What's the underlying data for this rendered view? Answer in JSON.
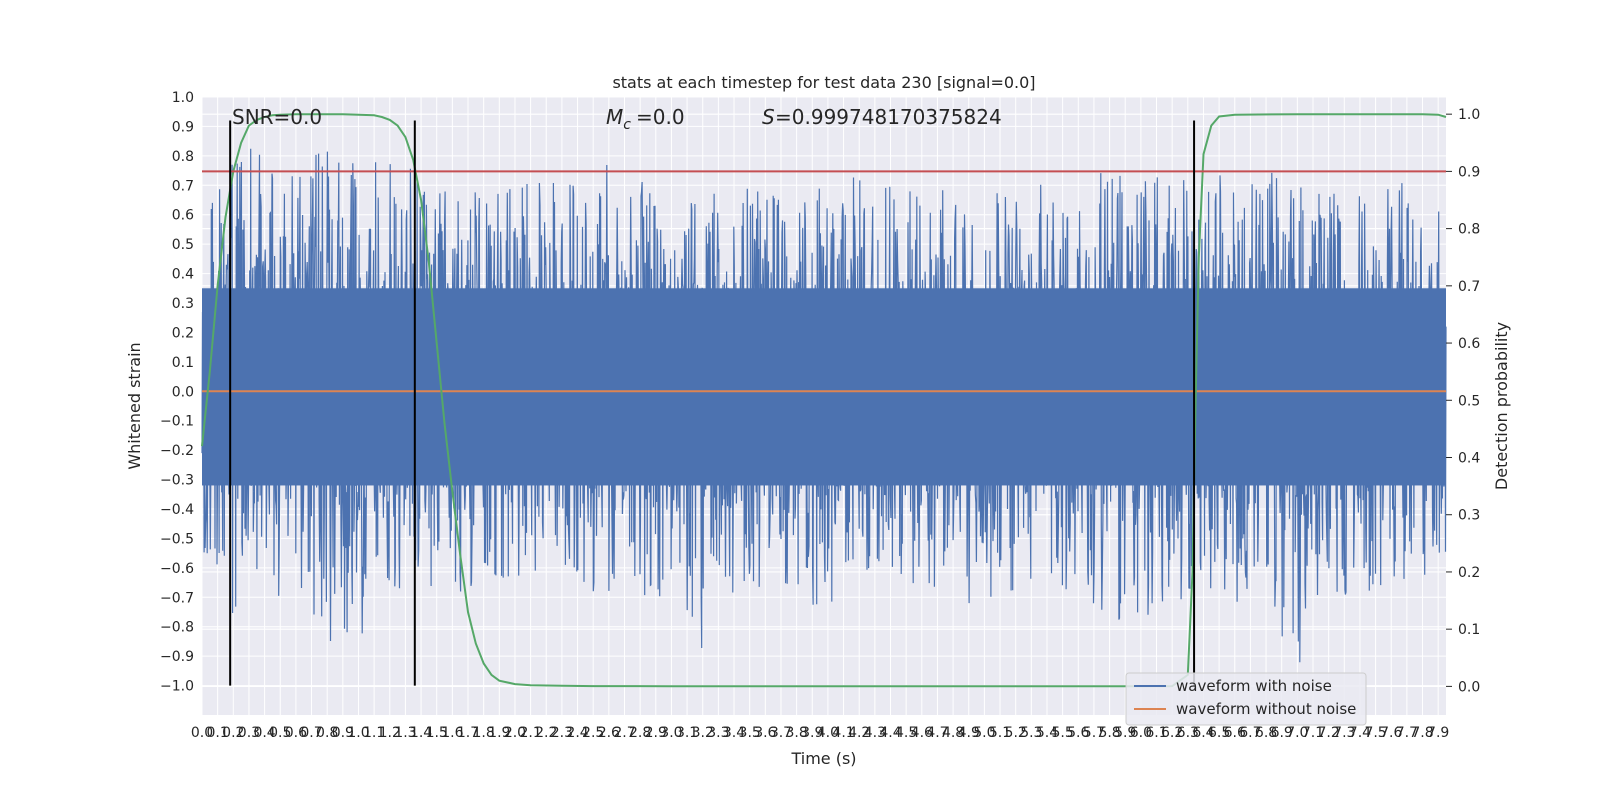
{
  "chart_data": {
    "type": "line",
    "title": "stats at each timestep for test data 230 [signal=0.0]",
    "xlabel": "Time (s)",
    "ylabel": "Whitened strain",
    "y2label": "Detection probability",
    "xlim": [
      0.0,
      7.95
    ],
    "ylim": [
      -1.1,
      1.0
    ],
    "y2lim": [
      -0.05,
      1.03
    ],
    "x_ticks": [
      "0.0",
      "0.1",
      "0.2",
      "0.3",
      "0.4",
      "0.5",
      "0.6",
      "0.7",
      "0.8",
      "0.9",
      "1.0",
      "1.1",
      "1.2",
      "1.3",
      "1.4",
      "1.5",
      "1.6",
      "1.7",
      "1.8",
      "1.9",
      "2.0",
      "2.1",
      "2.2",
      "2.3",
      "2.4",
      "2.5",
      "2.6",
      "2.7",
      "2.8",
      "2.9",
      "3.0",
      "3.1",
      "3.2",
      "3.3",
      "3.4",
      "3.5",
      "3.6",
      "3.7",
      "3.8",
      "3.9",
      "4.0",
      "4.1",
      "4.2",
      "4.3",
      "4.4",
      "4.5",
      "4.6",
      "4.7",
      "4.8",
      "4.9",
      "5.0",
      "5.1",
      "5.2",
      "5.3",
      "5.4",
      "5.5",
      "5.6",
      "5.7",
      "5.8",
      "5.9",
      "6.0",
      "6.1",
      "6.2",
      "6.3",
      "6.4",
      "6.5",
      "6.6",
      "6.7",
      "6.8",
      "6.9",
      "7.0",
      "7.1",
      "7.2",
      "7.3",
      "7.4",
      "7.5",
      "7.6",
      "7.7",
      "7.8",
      "7.9"
    ],
    "y_ticks": [
      "1.0",
      "0.9",
      "0.8",
      "0.7",
      "0.6",
      "0.5",
      "0.4",
      "0.3",
      "0.2",
      "0.1",
      "0.0",
      "−0.1",
      "−0.2",
      "−0.3",
      "−0.4",
      "−0.5",
      "−0.6",
      "−0.7",
      "−0.8",
      "−0.9",
      "−1.0"
    ],
    "y2_ticks": [
      "1.0",
      "0.9",
      "0.8",
      "0.7",
      "0.6",
      "0.5",
      "0.4",
      "0.3",
      "0.2",
      "0.1",
      "0.0"
    ],
    "annotations": {
      "snr": "SNR=0.0",
      "mc": "=0.0",
      "s": "=0.999748170375824"
    },
    "noise_envelope": {
      "x": [
        0.0,
        0.2,
        0.4,
        0.6,
        0.8,
        1.0,
        1.2,
        1.4,
        1.6,
        1.8,
        2.0,
        2.2,
        2.4,
        2.6,
        2.8,
        3.0,
        3.2,
        3.4,
        3.6,
        3.8,
        4.0,
        4.2,
        4.4,
        4.6,
        4.8,
        5.0,
        5.2,
        5.4,
        5.6,
        5.8,
        6.0,
        6.2,
        6.4,
        6.6,
        6.8,
        7.0,
        7.2,
        7.4,
        7.6,
        7.8,
        7.95
      ],
      "max": [
        0.55,
        0.86,
        0.8,
        0.85,
        0.85,
        0.8,
        0.8,
        0.77,
        0.67,
        0.72,
        0.71,
        0.72,
        0.73,
        0.81,
        0.72,
        0.62,
        0.7,
        0.73,
        0.74,
        0.7,
        0.75,
        0.78,
        0.72,
        0.72,
        0.69,
        0.63,
        0.74,
        0.73,
        0.72,
        0.75,
        0.76,
        0.76,
        0.68,
        0.84,
        0.75,
        0.73,
        0.72,
        0.68,
        0.81,
        0.6,
        0.62
      ],
      "min": [
        -0.55,
        -0.76,
        -0.76,
        -0.65,
        -0.87,
        -0.86,
        -0.7,
        -0.7,
        -0.76,
        -0.68,
        -0.63,
        -0.62,
        -0.7,
        -0.68,
        -0.72,
        -0.77,
        -0.94,
        -0.7,
        -0.67,
        -0.73,
        -0.79,
        -0.7,
        -0.68,
        -0.73,
        -0.74,
        -0.72,
        -0.78,
        -0.71,
        -0.7,
        -0.82,
        -0.77,
        -0.77,
        -0.66,
        -0.72,
        -0.69,
        -1.0,
        -0.68,
        -0.72,
        -0.65,
        -0.63,
        -0.6
      ]
    },
    "series": [
      {
        "name": "waveform with noise",
        "color": "#4c72b0"
      },
      {
        "name": "waveform without noise",
        "color": "#dd8452",
        "x": [
          0.0,
          7.95
        ],
        "y": [
          0.0,
          0.0
        ]
      },
      {
        "color": "#55a868",
        "axis": "right",
        "x": [
          0.0,
          0.05,
          0.1,
          0.15,
          0.2,
          0.25,
          0.3,
          0.35,
          0.4,
          0.45,
          0.5,
          0.6,
          0.7,
          0.8,
          0.9,
          1.0,
          1.1,
          1.15,
          1.2,
          1.25,
          1.3,
          1.35,
          1.4,
          1.45,
          1.5,
          1.55,
          1.6,
          1.65,
          1.7,
          1.75,
          1.8,
          1.85,
          1.9,
          2.0,
          2.1,
          2.3,
          2.5,
          3.0,
          4.0,
          5.0,
          6.0,
          6.2,
          6.3,
          6.33,
          6.35,
          6.37,
          6.4,
          6.45,
          6.5,
          6.6,
          7.0,
          7.5,
          7.8,
          7.9,
          7.95
        ],
        "y": [
          0.42,
          0.55,
          0.7,
          0.82,
          0.9,
          0.95,
          0.98,
          0.99,
          0.995,
          0.998,
          0.999,
          1.0,
          1.0,
          1.0,
          1.0,
          0.999,
          0.998,
          0.995,
          0.99,
          0.98,
          0.96,
          0.92,
          0.85,
          0.74,
          0.6,
          0.46,
          0.34,
          0.23,
          0.13,
          0.075,
          0.04,
          0.02,
          0.01,
          0.004,
          0.002,
          0.001,
          0.0005,
          0.0003,
          0.0003,
          0.0003,
          0.0003,
          0.0005,
          0.02,
          0.2,
          0.5,
          0.75,
          0.93,
          0.98,
          0.996,
          0.999,
          1.0,
          1.0,
          1.0,
          0.999,
          0.995
        ]
      },
      {
        "color": "#c44e52",
        "axis": "right",
        "x": [
          0.0,
          7.95
        ],
        "y": [
          0.9,
          0.9
        ]
      }
    ],
    "vertical_lines": [
      0.18,
      1.36,
      6.34
    ],
    "grid": true,
    "legend_position": "lower right"
  }
}
